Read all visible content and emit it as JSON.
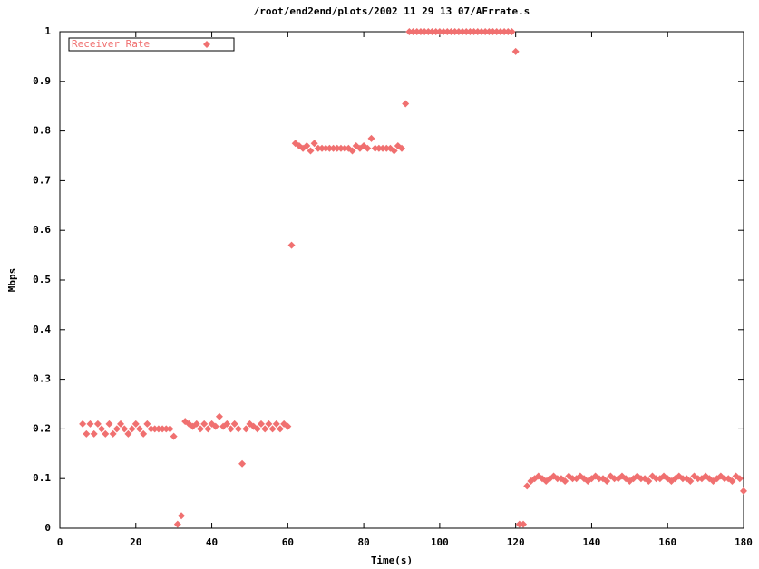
{
  "chart_data": {
    "type": "scatter",
    "title": "/root/end2end/plots/2002 11 29 13 07/AFrrate.s",
    "x_label": "Time(s)",
    "y_label": "Mbps",
    "xlim": [
      0,
      180
    ],
    "ylim": [
      0,
      1
    ],
    "xticks": [
      0,
      20,
      40,
      60,
      80,
      100,
      120,
      140,
      160,
      180
    ],
    "yticks": [
      0,
      0.1,
      0.2,
      0.3,
      0.4,
      0.5,
      0.6,
      0.7,
      0.8,
      0.9,
      1
    ],
    "legend": "top-left",
    "x": [
      6,
      7,
      8,
      9,
      10,
      11,
      12,
      13,
      14,
      15,
      16,
      17,
      18,
      19,
      20,
      21,
      22,
      23,
      24,
      25,
      26,
      27,
      28,
      29,
      30,
      31,
      32,
      33,
      34,
      35,
      36,
      37,
      38,
      39,
      40,
      41,
      42,
      43,
      44,
      45,
      46,
      47,
      48,
      49,
      50,
      51,
      52,
      53,
      54,
      55,
      56,
      57,
      58,
      59,
      60,
      61,
      62,
      63,
      64,
      65,
      66,
      67,
      68,
      69,
      70,
      71,
      72,
      73,
      74,
      75,
      76,
      77,
      78,
      79,
      80,
      81,
      82,
      83,
      84,
      85,
      86,
      87,
      88,
      89,
      90,
      91,
      92,
      93,
      94,
      95,
      96,
      97,
      98,
      99,
      100,
      101,
      102,
      103,
      104,
      105,
      106,
      107,
      108,
      109,
      110,
      111,
      112,
      113,
      114,
      115,
      116,
      117,
      118,
      119,
      120,
      121,
      122,
      123,
      124,
      125,
      126,
      127,
      128,
      129,
      130,
      131,
      132,
      133,
      134,
      135,
      136,
      137,
      138,
      139,
      140,
      141,
      142,
      143,
      144,
      145,
      146,
      147,
      148,
      149,
      150,
      151,
      152,
      153,
      154,
      155,
      156,
      157,
      158,
      159,
      160,
      161,
      162,
      163,
      164,
      165,
      166,
      167,
      168,
      169,
      170,
      171,
      172,
      173,
      174,
      175,
      176,
      177,
      178,
      179,
      180
    ],
    "series": [
      {
        "name": "Receiver Rate",
        "color": "#f07070",
        "values": [
          0.21,
          0.19,
          0.21,
          0.19,
          0.21,
          0.2,
          0.19,
          0.21,
          0.19,
          0.2,
          0.21,
          0.2,
          0.19,
          0.2,
          0.21,
          0.2,
          0.19,
          0.21,
          0.2,
          0.2,
          0.2,
          0.2,
          0.2,
          0.2,
          0.185,
          0.008,
          0.025,
          0.215,
          0.21,
          0.205,
          0.21,
          0.2,
          0.21,
          0.2,
          0.21,
          0.205,
          0.225,
          0.205,
          0.21,
          0.2,
          0.21,
          0.2,
          0.13,
          0.2,
          0.21,
          0.205,
          0.2,
          0.21,
          0.2,
          0.21,
          0.2,
          0.21,
          0.2,
          0.21,
          0.205,
          0.57,
          0.775,
          0.77,
          0.765,
          0.77,
          0.76,
          0.775,
          0.765,
          0.765,
          0.765,
          0.765,
          0.765,
          0.765,
          0.765,
          0.765,
          0.765,
          0.76,
          0.77,
          0.765,
          0.77,
          0.765,
          0.785,
          0.765,
          0.765,
          0.765,
          0.765,
          0.765,
          0.76,
          0.77,
          0.765,
          0.855,
          1,
          1,
          1,
          1,
          1,
          1,
          1,
          1,
          1,
          1,
          1,
          1,
          1,
          1,
          1,
          1,
          1,
          1,
          1,
          1,
          1,
          1,
          1,
          1,
          1,
          1,
          1,
          1,
          0.96,
          0.008,
          0.008,
          0.085,
          0.095,
          0.1,
          0.105,
          0.1,
          0.095,
          0.1,
          0.105,
          0.1,
          0.1,
          0.095,
          0.105,
          0.1,
          0.1,
          0.105,
          0.1,
          0.095,
          0.1,
          0.105,
          0.1,
          0.1,
          0.095,
          0.105,
          0.1,
          0.1,
          0.105,
          0.1,
          0.095,
          0.1,
          0.105,
          0.1,
          0.1,
          0.095,
          0.105,
          0.1,
          0.1,
          0.105,
          0.1,
          0.095,
          0.1,
          0.105,
          0.1,
          0.1,
          0.095,
          0.105,
          0.1,
          0.1,
          0.105,
          0.1,
          0.095,
          0.1,
          0.105,
          0.1,
          0.1,
          0.095,
          0.105,
          0.1,
          0.075
        ]
      }
    ]
  }
}
